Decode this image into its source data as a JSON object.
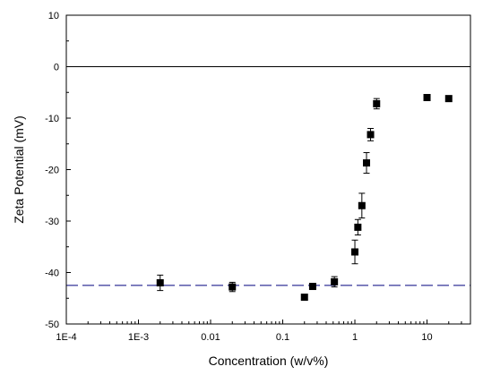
{
  "chart_data": {
    "type": "scatter",
    "title": "",
    "xlabel": "Concentration (w/v%)",
    "ylabel": "Zeta Potential (mV)",
    "x_scale": "log",
    "xlim": [
      0.0001,
      40
    ],
    "ylim": [
      -50,
      10
    ],
    "x_ticks": [
      0.0001,
      0.001,
      0.01,
      0.1,
      1,
      10
    ],
    "x_tick_labels": [
      "1E-4",
      "1E-3",
      "0.01",
      "0.1",
      "1",
      "10"
    ],
    "y_ticks": [
      10,
      0,
      -10,
      -20,
      -30,
      -40,
      -50
    ],
    "y_tick_labels": [
      "10",
      "0",
      "-10",
      "-20",
      "-30",
      "-40",
      "-50"
    ],
    "grid": false,
    "reference_lines": [
      {
        "y": 0,
        "style": "solid",
        "color": "#000000"
      },
      {
        "y": -42.5,
        "style": "dashed",
        "color": "#00007f"
      }
    ],
    "series": [
      {
        "marker": "square",
        "color": "#000000",
        "points": [
          {
            "x": 0.002,
            "y": -42.0,
            "err": 1.5
          },
          {
            "x": 0.02,
            "y": -42.8,
            "err": 0.9
          },
          {
            "x": 0.2,
            "y": -44.8,
            "err": 0
          },
          {
            "x": 0.26,
            "y": -42.7,
            "err": 0.5
          },
          {
            "x": 0.52,
            "y": -41.8,
            "err": 1.0
          },
          {
            "x": 1.0,
            "y": -36.0,
            "err": 2.3
          },
          {
            "x": 1.1,
            "y": -31.2,
            "err": 1.5
          },
          {
            "x": 1.25,
            "y": -27.0,
            "err": 2.4
          },
          {
            "x": 1.45,
            "y": -18.7,
            "err": 2.0
          },
          {
            "x": 1.65,
            "y": -13.2,
            "err": 1.2
          },
          {
            "x": 2.0,
            "y": -7.2,
            "err": 1.0
          },
          {
            "x": 10.0,
            "y": -6.0,
            "err": 0.4
          },
          {
            "x": 20.0,
            "y": -6.2,
            "err": 0.3
          }
        ]
      }
    ]
  }
}
